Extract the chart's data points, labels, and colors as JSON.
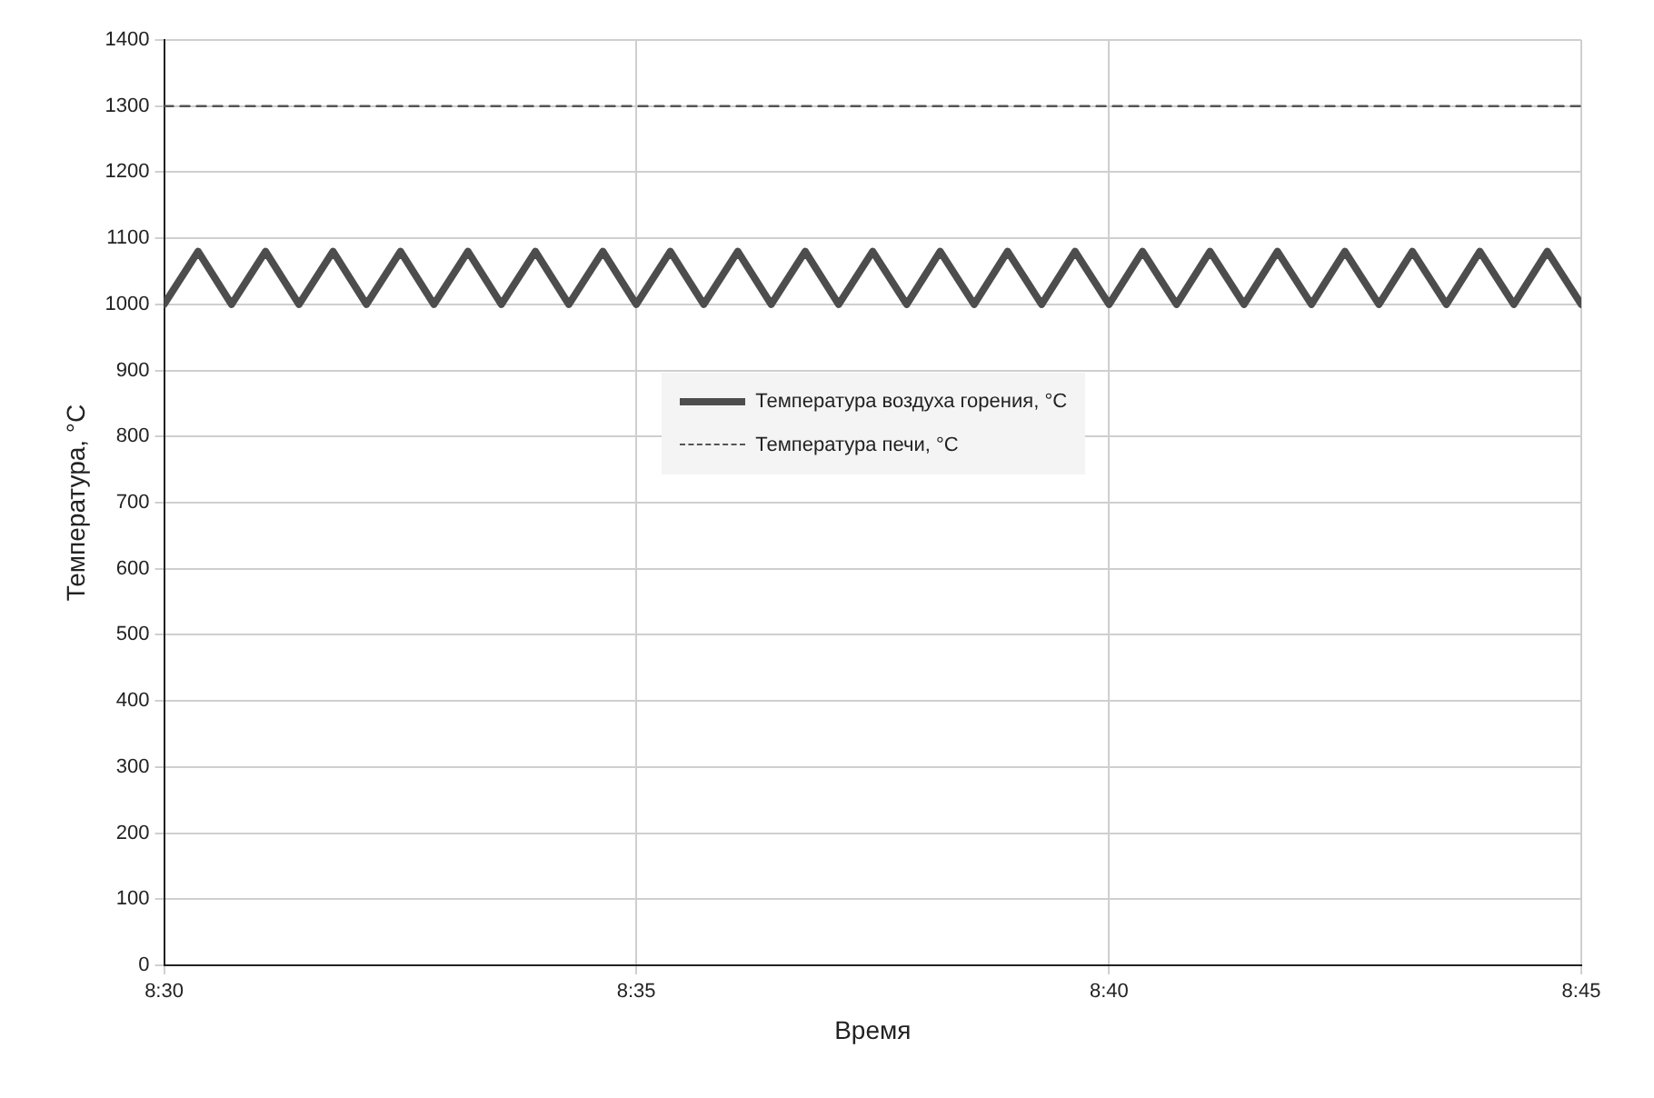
{
  "chart_data": {
    "type": "line",
    "xlabel": "Время",
    "ylabel": "Температура, °C",
    "xlim": [
      8.5,
      8.75
    ],
    "xticks": [
      {
        "value": 8.5,
        "label": "8:30"
      },
      {
        "value": 8.5833,
        "label": "8:35"
      },
      {
        "value": 8.6667,
        "label": "8:40"
      },
      {
        "value": 8.75,
        "label": "8:45"
      }
    ],
    "ylim": [
      0,
      1400
    ],
    "yticks": [
      0,
      100,
      200,
      300,
      400,
      500,
      600,
      700,
      800,
      900,
      1000,
      1100,
      1200,
      1300,
      1400
    ],
    "grid": true,
    "legend": "center",
    "marker": "none",
    "series": [
      {
        "name": "Температура воздуха горения, °C",
        "color": "#4d4d4d",
        "line_style": "solid",
        "x": [
          8.5,
          8.506,
          8.5119,
          8.5179,
          8.5238,
          8.5298,
          8.5357,
          8.5417,
          8.5476,
          8.5536,
          8.5595,
          8.5655,
          8.5714,
          8.5774,
          8.5833,
          8.5893,
          8.5952,
          8.6012,
          8.6071,
          8.6131,
          8.619,
          8.625,
          8.631,
          8.6369,
          8.6429,
          8.6488,
          8.6548,
          8.6607,
          8.6667,
          8.6726,
          8.6786,
          8.6845,
          8.6905,
          8.6964,
          8.7024,
          8.7083,
          8.7143,
          8.7202,
          8.7262,
          8.7321,
          8.7381,
          8.744,
          8.75
        ],
        "values": [
          1000,
          1080,
          1000,
          1080,
          1000,
          1080,
          1000,
          1080,
          1000,
          1080,
          1000,
          1080,
          1000,
          1080,
          1000,
          1080,
          1000,
          1080,
          1000,
          1080,
          1000,
          1080,
          1000,
          1080,
          1000,
          1080,
          1000,
          1080,
          1000,
          1080,
          1000,
          1080,
          1000,
          1080,
          1000,
          1080,
          1000,
          1080,
          1000,
          1080,
          1000,
          1080,
          1000
        ]
      },
      {
        "name": "Температура печи, °C",
        "color": "#555555",
        "line_style": "dashed",
        "x": [
          8.5,
          8.75
        ],
        "values": [
          1300,
          1300
        ]
      }
    ]
  }
}
